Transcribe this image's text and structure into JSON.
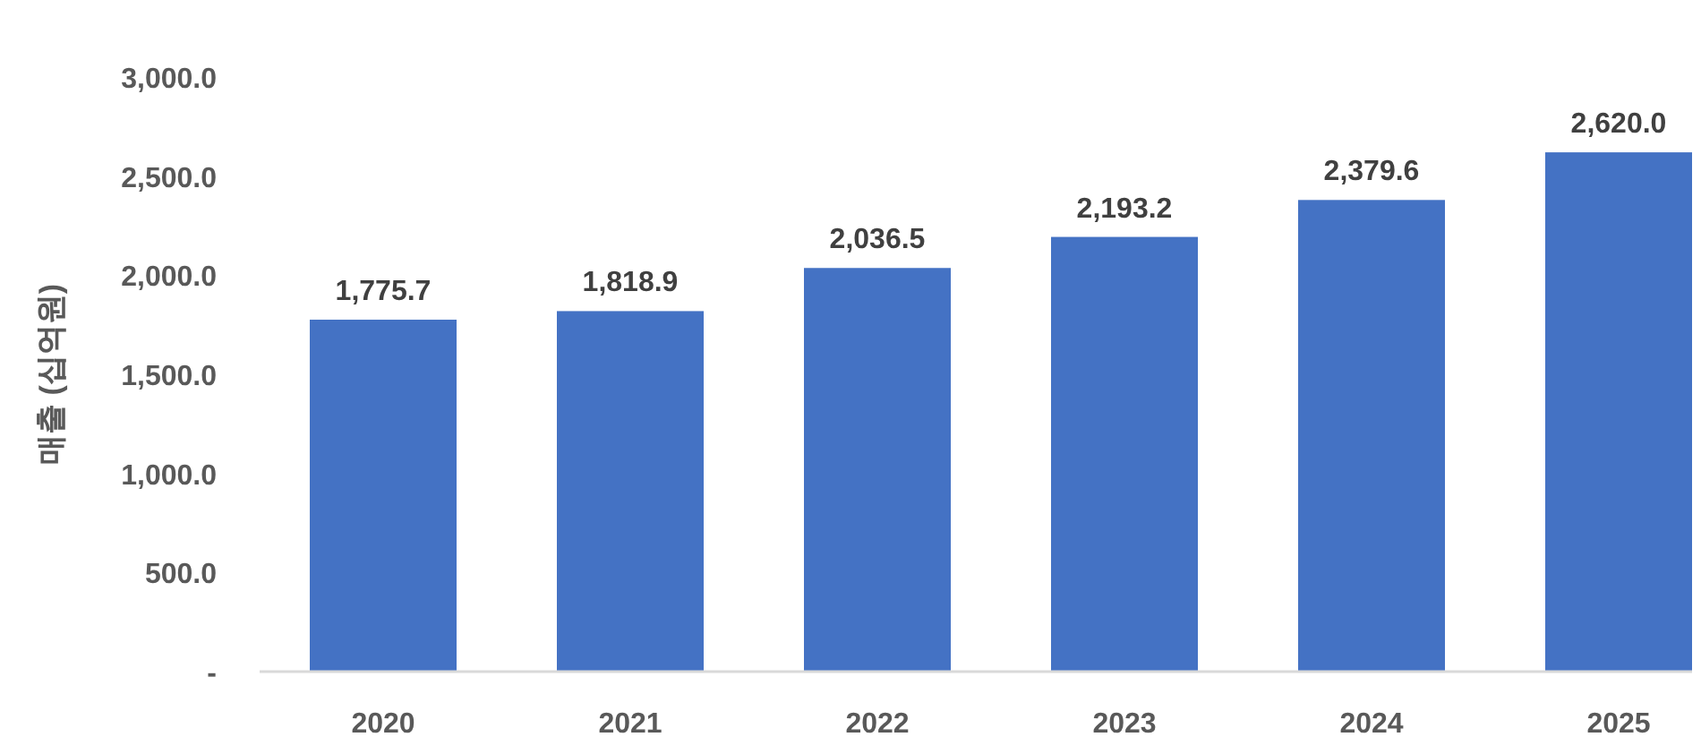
{
  "chart_data": {
    "type": "bar",
    "ylabel": "매출 (십억원)",
    "categories": [
      "2020",
      "2021",
      "2022",
      "2023",
      "2024",
      "2025"
    ],
    "values": [
      1775.7,
      1818.9,
      2036.5,
      2193.2,
      2379.6,
      2620.0
    ],
    "value_labels": [
      "1,775.7",
      "1,818.9",
      "2,036.5",
      "2,193.2",
      "2,379.6",
      "2,620.0"
    ],
    "color": "#4472c4",
    "ylim": [
      0,
      3000
    ],
    "yticks": [
      {
        "value": 0,
        "label": "-"
      },
      {
        "value": 500,
        "label": "500.0"
      },
      {
        "value": 1000,
        "label": "1,000.0"
      },
      {
        "value": 1500,
        "label": "1,500.0"
      },
      {
        "value": 2000,
        "label": "2,000.0"
      },
      {
        "value": 2500,
        "label": "2,500.0"
      },
      {
        "value": 3000,
        "label": "3,000.0"
      }
    ],
    "grid": false
  }
}
